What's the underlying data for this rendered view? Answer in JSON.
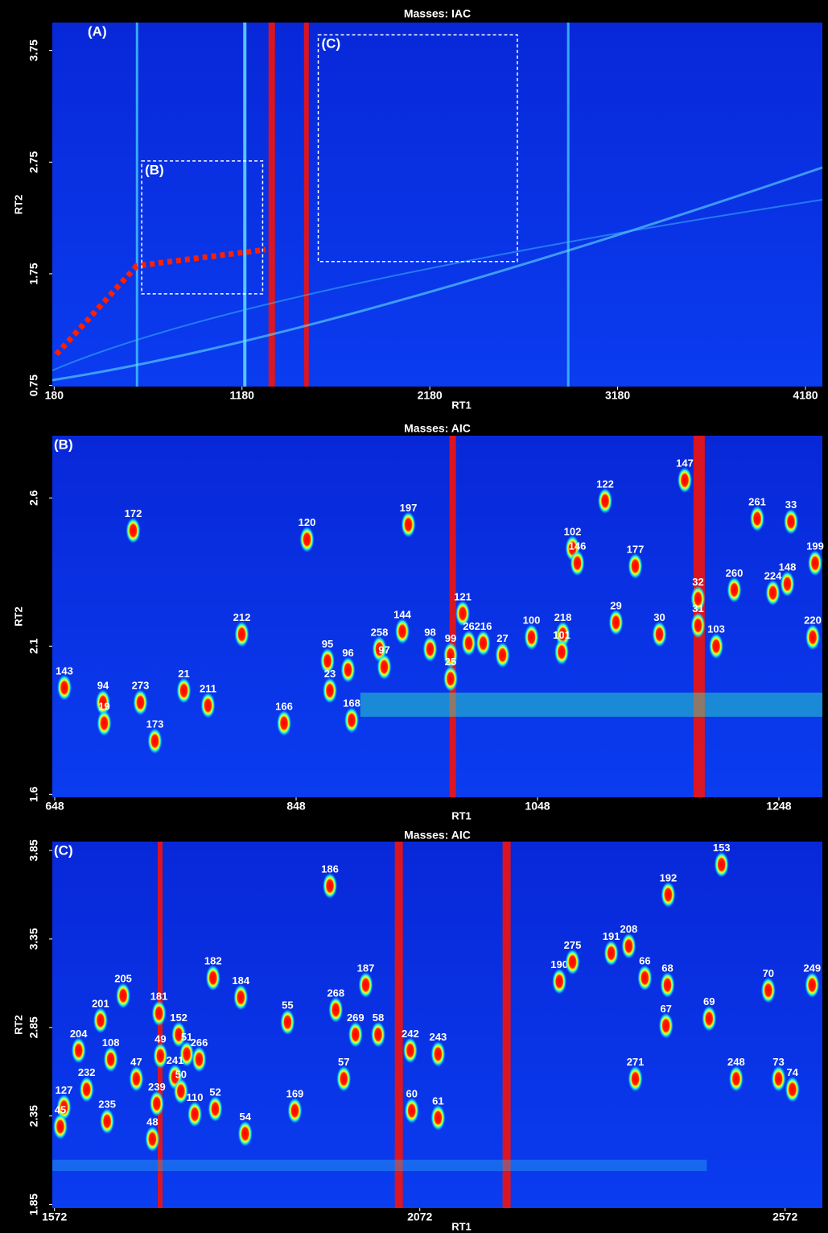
{
  "chart_data": [
    {
      "type": "scatter",
      "title": "Masses:  IAC",
      "panel_label": "(A)",
      "x_label": "RT1",
      "y_label": "RT2",
      "xlim": [
        170,
        4270
      ],
      "ylim": [
        0.74,
        4.0
      ],
      "xticks": [
        180,
        1180,
        2180,
        3180,
        4180
      ],
      "yticks": [
        0.75,
        1.75,
        2.75,
        3.75
      ],
      "regions": [
        {
          "label": "(B)",
          "xlim": [
            646,
            1290
          ],
          "ylim": [
            1.57,
            2.76
          ]
        },
        {
          "label": "(C)",
          "xlim": [
            1586,
            2646
          ],
          "ylim": [
            1.86,
            3.89
          ]
        }
      ]
    },
    {
      "type": "scatter",
      "title": "Masses:  AIC",
      "panel_label": "(B)",
      "x_label": "RT1",
      "y_label": "RT2",
      "xlim": [
        646,
        1284
      ],
      "ylim": [
        1.59,
        2.81
      ],
      "xticks": [
        648,
        848,
        1048,
        1248
      ],
      "yticks": [
        1.6,
        2.1,
        2.6
      ],
      "labels": [
        "172",
        "120",
        "197",
        "102",
        "122",
        "147",
        "261",
        "33",
        "199",
        "177",
        "146",
        "148",
        "224",
        "260",
        "220",
        "121",
        "216",
        "144",
        "29",
        "32",
        "31",
        "30",
        "103",
        "218",
        "101",
        "100",
        "27",
        "26",
        "99",
        "25",
        "98",
        "258",
        "97",
        "212",
        "95",
        "96",
        "23",
        "168",
        "166",
        "143",
        "94",
        "19",
        "273",
        "21",
        "211",
        "173"
      ],
      "x": [
        713,
        857,
        941,
        1077,
        1104,
        1170,
        1230,
        1258,
        1278,
        1129,
        1081,
        1255,
        1243,
        1211,
        1276,
        986,
        1003,
        936,
        1113,
        1181,
        1181,
        1149,
        1196,
        1069,
        1068,
        1043,
        1019,
        991,
        976,
        976,
        959,
        917,
        921,
        803,
        874,
        891,
        876,
        894,
        838,
        656,
        688,
        689,
        719,
        755,
        775,
        731
      ],
      "y": [
        2.49,
        2.46,
        2.51,
        2.43,
        2.59,
        2.66,
        2.53,
        2.52,
        2.38,
        2.37,
        2.38,
        2.31,
        2.28,
        2.29,
        2.13,
        2.21,
        2.11,
        2.15,
        2.18,
        2.26,
        2.17,
        2.14,
        2.1,
        2.14,
        2.08,
        2.13,
        2.07,
        2.11,
        2.07,
        1.99,
        2.09,
        2.09,
        2.03,
        2.14,
        2.05,
        2.02,
        1.95,
        1.85,
        1.84,
        1.96,
        1.91,
        1.84,
        1.91,
        1.95,
        1.9,
        1.78
      ]
    },
    {
      "type": "scatter",
      "title": "Masses:  AIC",
      "panel_label": "(C)",
      "x_label": "RT1",
      "y_label": "RT2",
      "xlim": [
        1569,
        2623
      ],
      "ylim": [
        1.83,
        3.9
      ],
      "xticks": [
        1572,
        2072,
        2572
      ],
      "yticks": [
        1.85,
        2.35,
        2.85,
        3.35,
        3.85
      ],
      "labels": [
        "153",
        "192",
        "186",
        "208",
        "190",
        "275",
        "191",
        "66",
        "68",
        "249",
        "70",
        "69",
        "67",
        "187",
        "268",
        "269",
        "58",
        "242",
        "243",
        "57",
        "55",
        "184",
        "182",
        "205",
        "201",
        "181",
        "152",
        "51",
        "266",
        "204",
        "108",
        "47",
        "49",
        "241",
        "50",
        "239",
        "110",
        "52",
        "232",
        "127",
        "45",
        "235",
        "48",
        "54",
        "169",
        "60",
        "61",
        "271",
        "248",
        "73",
        "74"
      ],
      "x": [
        2485,
        2412,
        1949,
        2358,
        2263,
        2281,
        2334,
        2380,
        2411,
        2609,
        2549,
        2468,
        2409,
        1998,
        1957,
        1984,
        2015,
        2059,
        2097,
        1968,
        1891,
        1827,
        1789,
        1666,
        1635,
        1715,
        1742,
        1753,
        1770,
        1605,
        1649,
        1684,
        1717,
        1737,
        1745,
        1712,
        1764,
        1792,
        1616,
        1585,
        1580,
        1644,
        1706,
        1833,
        1901,
        2061,
        2097,
        2367,
        2505,
        2563,
        2582
      ],
      "y": [
        3.77,
        3.6,
        3.65,
        3.31,
        3.11,
        3.22,
        3.27,
        3.13,
        3.09,
        3.09,
        3.06,
        2.9,
        2.86,
        3.09,
        2.95,
        2.81,
        2.81,
        2.72,
        2.7,
        2.56,
        2.88,
        3.02,
        3.13,
        3.03,
        2.89,
        2.93,
        2.81,
        2.7,
        2.67,
        2.72,
        2.67,
        2.56,
        2.69,
        2.57,
        2.49,
        2.42,
        2.36,
        2.39,
        2.5,
        2.4,
        2.29,
        2.32,
        2.22,
        2.25,
        2.38,
        2.38,
        2.34,
        2.56,
        2.56,
        2.56,
        2.5
      ]
    }
  ]
}
